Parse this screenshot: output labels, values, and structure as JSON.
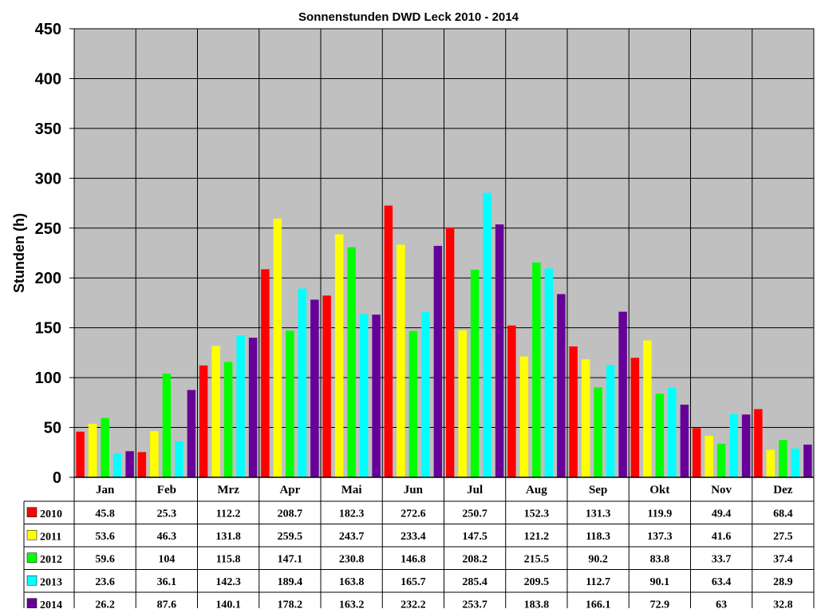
{
  "chart_data": {
    "type": "bar",
    "title": "Sonnenstunden DWD Leck 2010 - 2014",
    "ylabel": "Stunden (h)",
    "xlabel": "",
    "ylim": [
      0,
      450
    ],
    "yticks": [
      "0",
      "50",
      "100",
      "150",
      "200",
      "250",
      "300",
      "350",
      "400",
      "450"
    ],
    "ytick_values": [
      0,
      50,
      100,
      150,
      200,
      250,
      300,
      350,
      400,
      450
    ],
    "grid": true,
    "plot_background": "#C0C0C0",
    "legend": "data-table",
    "categories": [
      "Jan",
      "Feb",
      "Mrz",
      "Apr",
      "Mai",
      "Jun",
      "Jul",
      "Aug",
      "Sep",
      "Okt",
      "Nov",
      "Dez"
    ],
    "series": [
      {
        "name": "2010",
        "color": "#FF0000",
        "values": [
          45.8,
          25.3,
          112.2,
          208.7,
          182.3,
          272.6,
          250.7,
          152.3,
          131.3,
          119.9,
          49.4,
          68.4
        ],
        "labels": [
          "45.8",
          "25.3",
          "112.2",
          "208.7",
          "182.3",
          "272.6",
          "250.7",
          "152.3",
          "131.3",
          "119.9",
          "49.4",
          "68.4"
        ]
      },
      {
        "name": "2011",
        "color": "#FFFF00",
        "values": [
          53.6,
          46.3,
          131.8,
          259.5,
          243.7,
          233.4,
          147.5,
          121.2,
          118.3,
          137.3,
          41.6,
          27.5
        ],
        "labels": [
          "53.6",
          "46.3",
          "131.8",
          "259.5",
          "243.7",
          "233.4",
          "147.5",
          "121.2",
          "118.3",
          "137.3",
          "41.6",
          "27.5"
        ]
      },
      {
        "name": "2012",
        "color": "#00FF00",
        "values": [
          59.6,
          104,
          115.8,
          147.1,
          230.8,
          146.8,
          208.2,
          215.5,
          90.2,
          83.8,
          33.7,
          37.4
        ],
        "labels": [
          "59.6",
          "104",
          "115.8",
          "147.1",
          "230.8",
          "146.8",
          "208.2",
          "215.5",
          "90.2",
          "83.8",
          "33.7",
          "37.4"
        ]
      },
      {
        "name": "2013",
        "color": "#00FFFF",
        "values": [
          23.6,
          36.1,
          142.3,
          189.4,
          163.8,
          165.7,
          285.4,
          209.5,
          112.7,
          90.1,
          63.4,
          28.9
        ],
        "labels": [
          "23.6",
          "36.1",
          "142.3",
          "189.4",
          "163.8",
          "165.7",
          "285.4",
          "209.5",
          "112.7",
          "90.1",
          "63.4",
          "28.9"
        ]
      },
      {
        "name": "2014",
        "color": "#660099",
        "values": [
          26.2,
          87.6,
          140.1,
          178.2,
          163.2,
          232.2,
          253.7,
          183.8,
          166.1,
          72.9,
          63,
          32.8
        ],
        "labels": [
          "26.2",
          "87.6",
          "140.1",
          "178.2",
          "163.2",
          "232.2",
          "253.7",
          "183.8",
          "166.1",
          "72.9",
          "63",
          "32.8"
        ]
      }
    ]
  }
}
